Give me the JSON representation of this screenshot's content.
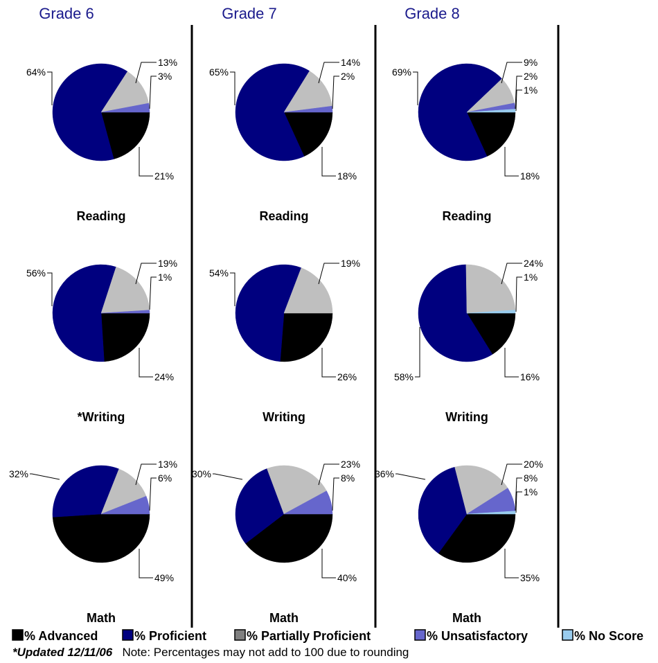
{
  "footnote": {
    "updated": "*Updated 12/11/06",
    "note": "Note: Percentages may not add to 100 due to rounding"
  },
  "legend": [
    {
      "label": "% Advanced",
      "color": "#000000"
    },
    {
      "label": "% Proficient",
      "color": "#00007f"
    },
    {
      "label": "% Partially Proficient",
      "color": "#808080"
    },
    {
      "label": "% Unsatisfactory",
      "color": "#6666cc"
    },
    {
      "label": "% No Score",
      "color": "#99ccee"
    }
  ],
  "slice_colors": {
    "Advanced": "#000000",
    "Proficient": "#00007f",
    "Partially Proficient": "#bfbfbf",
    "Unsatisfactory": "#6666cc",
    "No Score": "#99ccee"
  },
  "chart_data": {
    "type": "pie",
    "categories": [
      "Advanced",
      "Proficient",
      "Partially Proficient",
      "Unsatisfactory",
      "No Score"
    ],
    "grades": [
      "Grade 6",
      "Grade 7",
      "Grade 8"
    ],
    "charts": [
      {
        "grade": "Grade 6",
        "subject": "Reading",
        "values": [
          21,
          64,
          13,
          3,
          0
        ],
        "labels": [
          "21%",
          "64%",
          "13%",
          "3%",
          ""
        ]
      },
      {
        "grade": "Grade 7",
        "subject": "Reading",
        "values": [
          18,
          65,
          14,
          2,
          0
        ],
        "labels": [
          "18%",
          "65%",
          "14%",
          "2%",
          ""
        ]
      },
      {
        "grade": "Grade 8",
        "subject": "Reading",
        "values": [
          18,
          69,
          9,
          2,
          1
        ],
        "labels": [
          "18%",
          "69%",
          "9%",
          "2%",
          "1%"
        ]
      },
      {
        "grade": "Grade 6",
        "subject": "*Writing",
        "values": [
          24,
          56,
          19,
          1,
          0
        ],
        "labels": [
          "24%",
          "56%",
          "19%",
          "1%",
          ""
        ]
      },
      {
        "grade": "Grade 7",
        "subject": "Writing",
        "values": [
          26,
          54,
          19,
          0,
          0
        ],
        "labels": [
          "26%",
          "54%",
          "19%",
          "",
          ""
        ]
      },
      {
        "grade": "Grade 8",
        "subject": "Writing",
        "values": [
          16,
          58,
          24,
          0,
          1
        ],
        "labels": [
          "16%",
          "58%",
          "24%",
          "",
          "1%"
        ]
      },
      {
        "grade": "Grade 6",
        "subject": "Math",
        "values": [
          49,
          32,
          13,
          6,
          0
        ],
        "labels": [
          "49%",
          "32%",
          "13%",
          "6%",
          ""
        ]
      },
      {
        "grade": "Grade 7",
        "subject": "Math",
        "values": [
          40,
          30,
          23,
          8,
          0
        ],
        "labels": [
          "40%",
          "30%",
          "23%",
          "8%",
          ""
        ]
      },
      {
        "grade": "Grade 8",
        "subject": "Math",
        "values": [
          35,
          36,
          20,
          8,
          1
        ],
        "labels": [
          "35%",
          "36%",
          "20%",
          "8%",
          "1%"
        ]
      }
    ]
  }
}
